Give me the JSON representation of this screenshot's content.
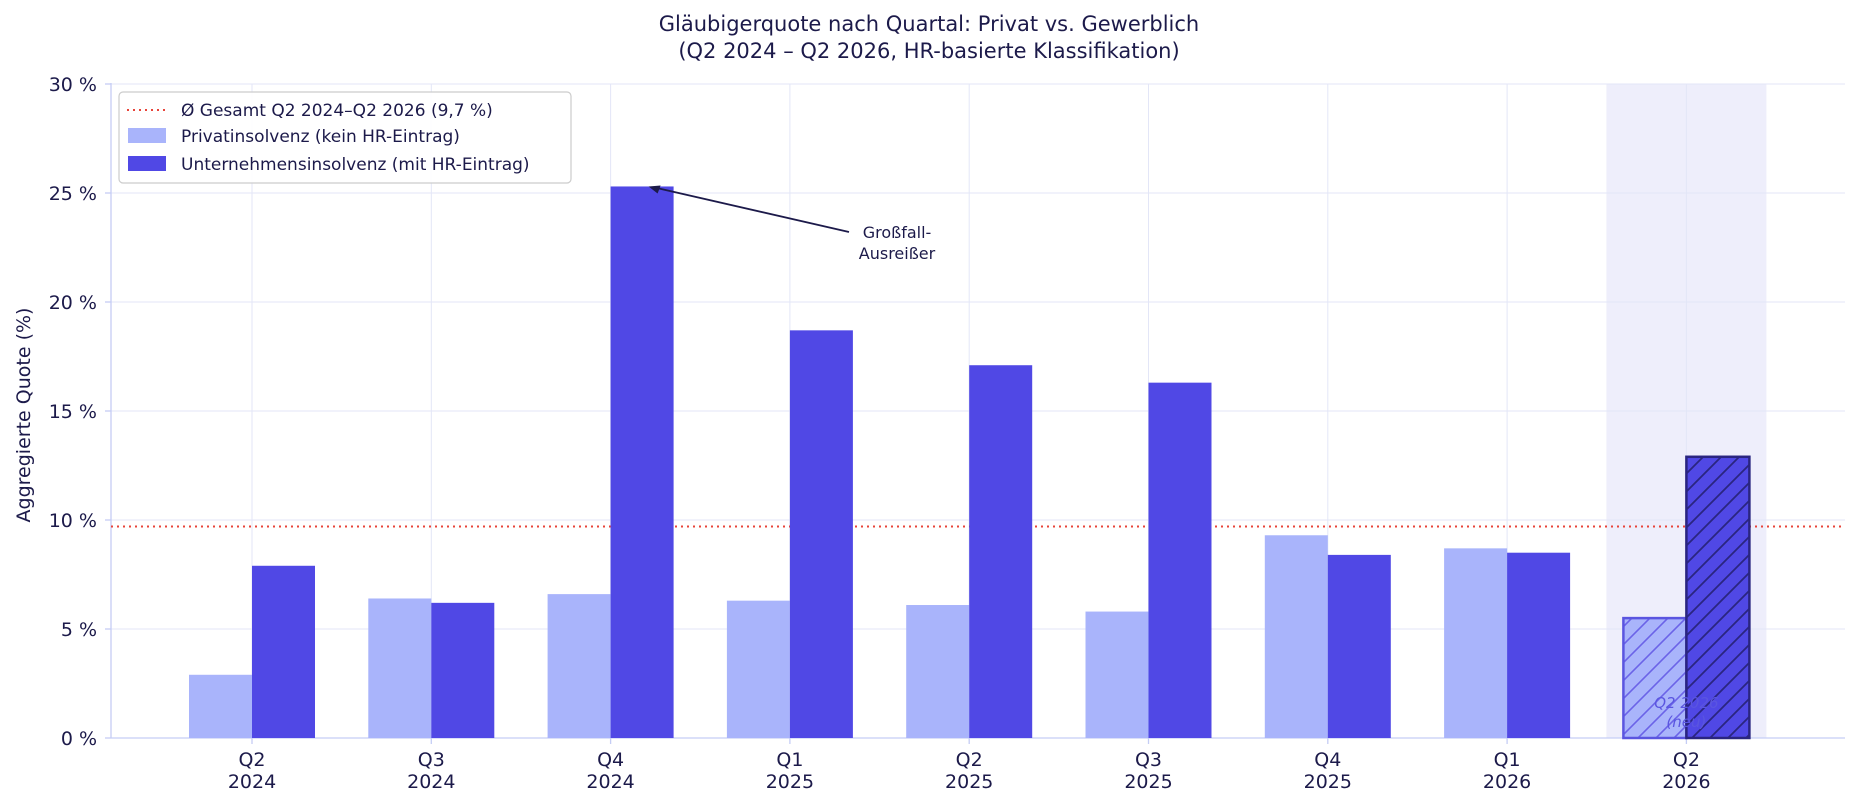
{
  "chart_data": {
    "type": "bar",
    "title": "Gläubigerquote nach Quartal: Privat vs. Gewerblich",
    "subtitle": "(Q2 2024 – Q2 2026, HR-basierte Klassifikation)",
    "ylabel": "Aggregierte Quote (%)",
    "xlabel": "",
    "ylim": [
      0,
      30
    ],
    "yticks": [
      0,
      5,
      10,
      15,
      20,
      25,
      30
    ],
    "ytick_suffix": " %",
    "categories": [
      [
        "Q2",
        "2024"
      ],
      [
        "Q3",
        "2024"
      ],
      [
        "Q4",
        "2024"
      ],
      [
        "Q1",
        "2025"
      ],
      [
        "Q2",
        "2025"
      ],
      [
        "Q3",
        "2025"
      ],
      [
        "Q4",
        "2025"
      ],
      [
        "Q1",
        "2026"
      ],
      [
        "Q2",
        "2026"
      ]
    ],
    "series": [
      {
        "name": "Privatinsolvenz (kein HR-Eintrag)",
        "color": "#a9b4fb",
        "values": [
          2.9,
          6.4,
          6.6,
          6.3,
          6.1,
          5.8,
          9.3,
          8.7,
          5.5
        ]
      },
      {
        "name": "Unternehmensinsolvenz (mit HR-Eintrag)",
        "color": "#5048e5",
        "values": [
          7.9,
          6.2,
          25.3,
          18.7,
          17.1,
          16.3,
          8.4,
          8.5,
          12.9
        ]
      }
    ],
    "reference_line": {
      "label": "Ø Gesamt Q2 2024–Q2 2026 (9,7 %)",
      "value": 9.7,
      "color": "#e8443a",
      "style": "dotted"
    },
    "annotation": {
      "text_lines": [
        "Großfall-",
        "Ausreißer"
      ],
      "target_category_index": 2,
      "target_series_index": 1
    },
    "highlight": {
      "category_index": 8,
      "text_lines": [
        "Q2 2026",
        "(neu)"
      ],
      "hatched": true
    },
    "grid": true,
    "legend_position": "top-left"
  }
}
